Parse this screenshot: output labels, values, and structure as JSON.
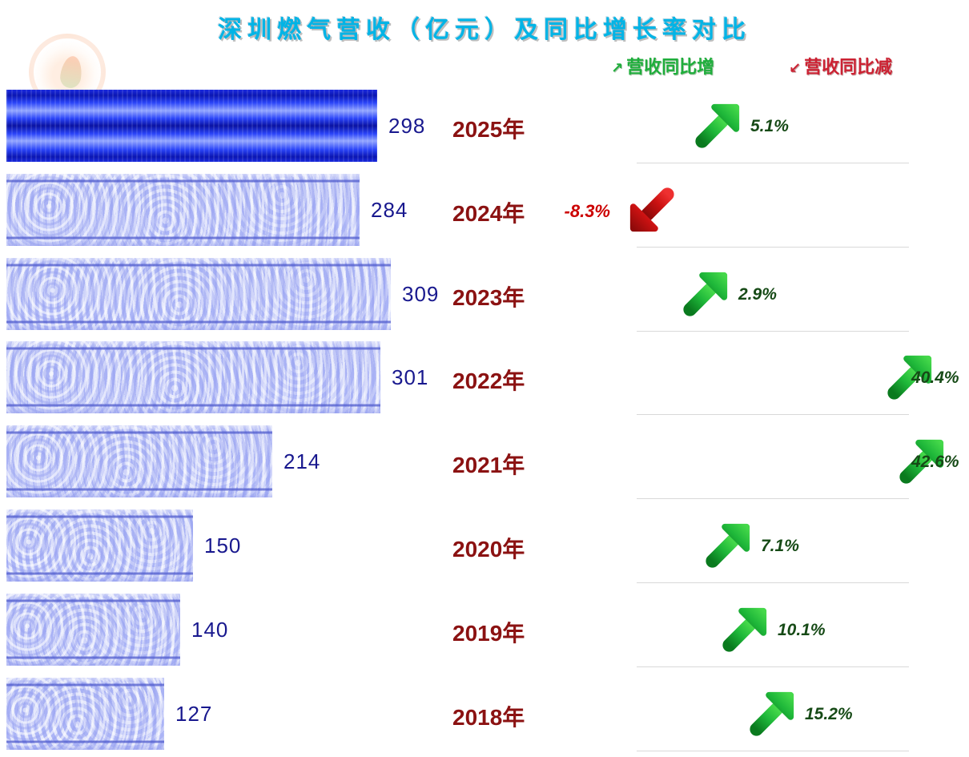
{
  "title": "深圳燃气营收（亿元）及同比增长率对比",
  "legend": {
    "increase_icon": "↗",
    "increase": "营收同比增",
    "decrease_icon": "↙",
    "decrease": "营收同比减",
    "increase_color": "#1fae3c",
    "decrease_color": "#cc2233"
  },
  "chart_data": {
    "type": "bar",
    "orientation": "horizontal",
    "title": "深圳燃气营收（亿元）及同比增长率对比",
    "categories": [
      "2025年",
      "2024年",
      "2023年",
      "2022年",
      "2021年",
      "2020年",
      "2019年",
      "2018年"
    ],
    "series": [
      {
        "name": "营收（亿元）",
        "values": [
          298,
          284,
          309,
          301,
          214,
          150,
          140,
          127
        ]
      },
      {
        "name": "同比增长率",
        "values": [
          5.1,
          -8.3,
          2.9,
          40.4,
          42.6,
          7.1,
          10.1,
          15.2
        ]
      }
    ],
    "value_labels": [
      "298",
      "284",
      "309",
      "301",
      "214",
      "150",
      "140",
      "127"
    ],
    "growth_labels": [
      "5.1%",
      "-8.3%",
      "2.9%",
      "40.4%",
      "42.6%",
      "7.1%",
      "10.1%",
      "15.2%"
    ],
    "xlim": [
      0,
      320
    ],
    "legend_position": "top-right",
    "grid": false,
    "bar_color": "#b2baf3",
    "bar_highlight_color": "#1a2ade",
    "value_color": "#18188e",
    "year_color": "#8b1212",
    "up_arrow_color": "#1fae3c",
    "down_arrow_color": "#cc0000"
  }
}
